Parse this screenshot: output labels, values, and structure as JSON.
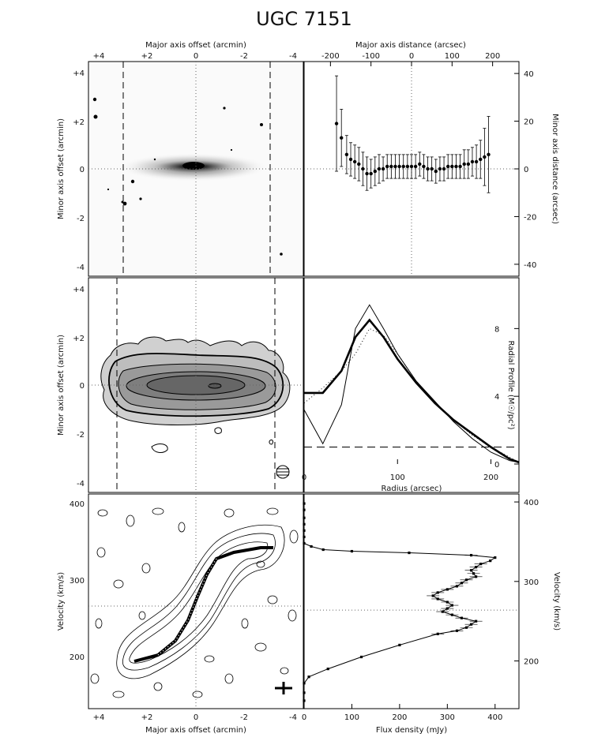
{
  "title": "UGC 7151",
  "panels": {
    "optical": {
      "top_axis_label": "Major axis offset (arcmin)",
      "left_axis_label": "Minor axis offset (arcmin)",
      "top_ticks": [
        "+4",
        "+2",
        "0",
        "-2",
        "-4"
      ],
      "left_ticks": [
        "+4",
        "+2",
        "0",
        "-2",
        "-4"
      ]
    },
    "hi_map": {
      "left_axis_label": "Minor axis offset (arcmin)",
      "left_ticks": [
        "+4",
        "+2",
        "0",
        "-2",
        "-4"
      ]
    },
    "pv": {
      "bottom_axis_label": "Major axis offset (arcmin)",
      "left_axis_label": "Velocity (km/s)",
      "bottom_ticks": [
        "+4",
        "+2",
        "0",
        "-2",
        "-4"
      ],
      "left_ticks": [
        "400",
        "300",
        "200"
      ]
    }
  },
  "chart_data": [
    {
      "type": "scatter",
      "id": "minor-axis-distance",
      "xlabel": "Major axis distance (arcsec)",
      "ylabel": "Minor axis distance (arcsec)",
      "xlim": [
        -265,
        265
      ],
      "ylim": [
        -45,
        45
      ],
      "xticks": [
        -200,
        -100,
        0,
        100,
        200
      ],
      "yticks": [
        40,
        20,
        0,
        -20,
        -40
      ],
      "x": [
        -185,
        -173,
        -160,
        -150,
        -140,
        -130,
        -120,
        -110,
        -100,
        -90,
        -80,
        -70,
        -60,
        -50,
        -40,
        -30,
        -20,
        -10,
        0,
        10,
        20,
        30,
        40,
        50,
        60,
        70,
        80,
        90,
        100,
        110,
        120,
        130,
        140,
        150,
        160,
        170,
        180,
        190
      ],
      "y": [
        19,
        13,
        6,
        4,
        3,
        2,
        0,
        -2,
        -2,
        -1,
        0,
        0,
        1,
        1,
        1,
        1,
        1,
        1,
        1,
        1,
        2,
        1,
        0,
        0,
        -1,
        0,
        0,
        1,
        1,
        1,
        1,
        2,
        2,
        3,
        3,
        4,
        5,
        6
      ],
      "err": [
        20,
        12,
        8,
        7,
        7,
        7,
        7,
        7,
        6,
        6,
        6,
        5,
        5,
        5,
        5,
        5,
        5,
        5,
        5,
        5,
        5,
        5,
        5,
        5,
        5,
        5,
        5,
        5,
        5,
        5,
        5,
        6,
        6,
        6,
        7,
        8,
        12,
        16
      ]
    },
    {
      "type": "line",
      "id": "radial-profile",
      "xlabel": "Radius (arcsec)",
      "ylabel": "Radial Profile (M☉/pc²)",
      "xlim": [
        0,
        230
      ],
      "ylim": [
        0,
        11
      ],
      "xticks": [
        0,
        100,
        200
      ],
      "yticks": [
        0,
        4,
        8
      ],
      "series": [
        {
          "style": "thick",
          "x": [
            0,
            20,
            40,
            55,
            70,
            85,
            100,
            120,
            140,
            160,
            180,
            200,
            220,
            230
          ],
          "y": [
            4.2,
            4.2,
            5.5,
            7.5,
            8.5,
            7.5,
            6.2,
            4.8,
            3.6,
            2.6,
            1.8,
            1.0,
            0.3,
            0.1
          ]
        },
        {
          "style": "thin",
          "x": [
            0,
            20,
            40,
            55,
            70,
            85,
            100,
            120,
            140,
            160,
            180,
            200,
            220,
            230
          ],
          "y": [
            3.2,
            1.2,
            3.5,
            8.0,
            9.4,
            8.0,
            6.5,
            4.9,
            3.7,
            2.5,
            1.5,
            0.7,
            0.2,
            0.1
          ]
        },
        {
          "style": "dotted",
          "x": [
            0,
            20,
            40,
            55,
            70,
            85,
            100,
            120,
            140,
            160,
            180,
            200,
            220,
            230
          ],
          "y": [
            3.6,
            4.5,
            5.5,
            6.5,
            8.0,
            7.6,
            6.5,
            4.9,
            3.6,
            2.6,
            1.7,
            1.0,
            0.4,
            0.1
          ]
        },
        {
          "style": "dashed",
          "x": [
            0,
            230
          ],
          "y": [
            1.0,
            1.0
          ]
        }
      ]
    },
    {
      "type": "line",
      "id": "global-profile",
      "xlabel": "Flux density (mJy)",
      "ylabel": "Velocity (km/s)",
      "xlim": [
        0,
        450
      ],
      "ylim": [
        140,
        410
      ],
      "xticks": [
        0,
        100,
        200,
        300,
        400
      ],
      "yticks": [
        400,
        300,
        200
      ],
      "systemic_velocity": 264,
      "flux": [
        0,
        0,
        0,
        0,
        0,
        0,
        0,
        15,
        40,
        100,
        220,
        350,
        400,
        390,
        370,
        360,
        350,
        355,
        360,
        340,
        330,
        320,
        300,
        280,
        270,
        280,
        300,
        310,
        300,
        290,
        310,
        330,
        360,
        350,
        340,
        320,
        280,
        200,
        120,
        50,
        10,
        0,
        0,
        0
      ],
      "velocity": [
        398,
        390,
        380,
        372,
        364,
        356,
        348,
        344,
        340,
        338,
        336,
        333,
        330,
        326,
        322,
        318,
        314,
        310,
        306,
        302,
        298,
        294,
        290,
        286,
        282,
        278,
        274,
        270,
        266,
        262,
        258,
        254,
        250,
        246,
        242,
        238,
        234,
        220,
        205,
        190,
        180,
        172,
        160,
        150
      ]
    }
  ]
}
